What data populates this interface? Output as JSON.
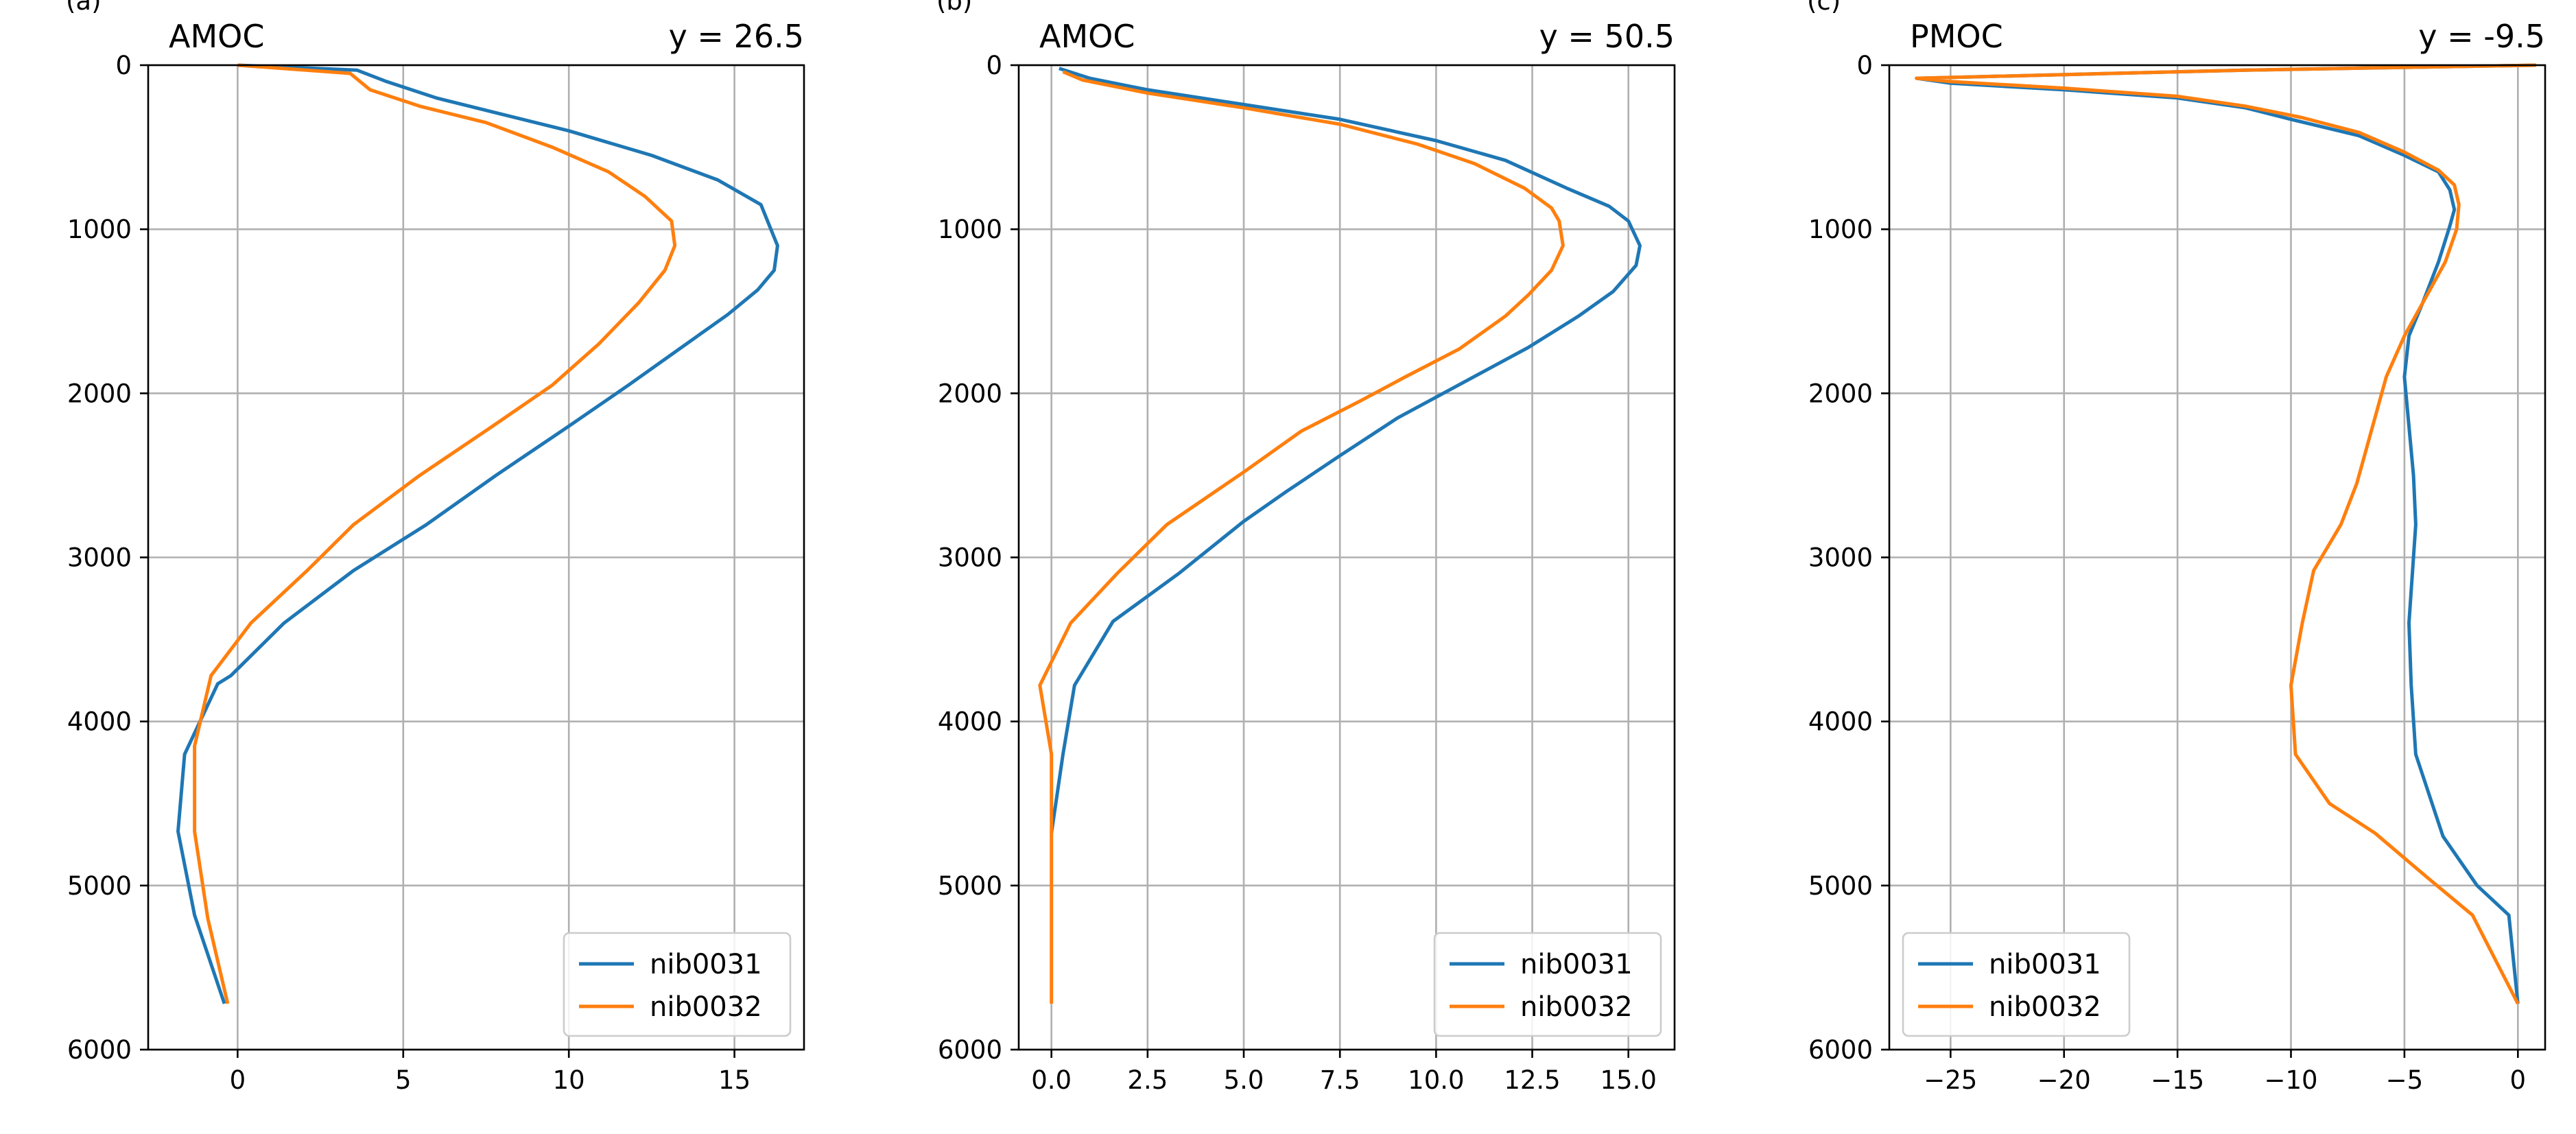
{
  "chart_data": [
    {
      "type": "line",
      "panel_label": "(a)",
      "title_left": "AMOC",
      "title_right": "y = 26.5",
      "xlim": [
        -2.7,
        17.1
      ],
      "ylim": [
        6000,
        0
      ],
      "xticks": [
        0,
        5,
        10,
        15
      ],
      "xtick_labels": [
        "0",
        "5",
        "10",
        "15"
      ],
      "yticks": [
        0,
        1000,
        2000,
        3000,
        4000,
        5000,
        6000
      ],
      "ytick_labels": [
        "0",
        "1000",
        "2000",
        "3000",
        "4000",
        "5000",
        "6000"
      ],
      "grid": true,
      "legend_position": "lower-right",
      "series": [
        {
          "name": "nib0031",
          "color": "#1f77b4",
          "points": [
            [
              0,
              0
            ],
            [
              3.6,
              30
            ],
            [
              4.5,
              100
            ],
            [
              6,
              200
            ],
            [
              8,
              300
            ],
            [
              10,
              400
            ],
            [
              12.5,
              550
            ],
            [
              14.5,
              700
            ],
            [
              15.8,
              850
            ],
            [
              16.1,
              1000
            ],
            [
              16.3,
              1100
            ],
            [
              16.2,
              1250
            ],
            [
              15.7,
              1370
            ],
            [
              14.8,
              1520
            ],
            [
              13.4,
              1720
            ],
            [
              11.8,
              1950
            ],
            [
              10,
              2200
            ],
            [
              7.8,
              2500
            ],
            [
              5.7,
              2800
            ],
            [
              3.5,
              3080
            ],
            [
              1.4,
              3400
            ],
            [
              -0.2,
              3720
            ],
            [
              -0.6,
              3770
            ],
            [
              -1.6,
              4200
            ],
            [
              -1.8,
              4670
            ],
            [
              -1.3,
              5180
            ],
            [
              -0.4,
              5720
            ]
          ]
        },
        {
          "name": "nib0032",
          "color": "#ff7f0e",
          "points": [
            [
              0,
              0
            ],
            [
              3.4,
              50
            ],
            [
              4,
              150
            ],
            [
              5.5,
              250
            ],
            [
              7.5,
              350
            ],
            [
              9.5,
              500
            ],
            [
              11.2,
              650
            ],
            [
              12.3,
              800
            ],
            [
              13.1,
              950
            ],
            [
              13.2,
              1100
            ],
            [
              12.9,
              1250
            ],
            [
              12.1,
              1450
            ],
            [
              10.9,
              1700
            ],
            [
              9.5,
              1950
            ],
            [
              7.7,
              2200
            ],
            [
              5.5,
              2500
            ],
            [
              3.5,
              2800
            ],
            [
              2.1,
              3080
            ],
            [
              0.4,
              3400
            ],
            [
              -0.8,
              3720
            ],
            [
              -1.3,
              4150
            ],
            [
              -1.3,
              4670
            ],
            [
              -0.9,
              5200
            ],
            [
              -0.3,
              5720
            ]
          ]
        }
      ]
    },
    {
      "type": "line",
      "panel_label": "(b)",
      "title_left": "AMOC",
      "title_right": "y = 50.5",
      "xlim": [
        -0.85,
        16.2
      ],
      "ylim": [
        6000,
        0
      ],
      "xticks": [
        0,
        2.5,
        5,
        7.5,
        10,
        12.5,
        15
      ],
      "xtick_labels": [
        "0.0",
        "2.5",
        "5.0",
        "7.5",
        "10.0",
        "12.5",
        "15.0"
      ],
      "yticks": [
        0,
        1000,
        2000,
        3000,
        4000,
        5000,
        6000
      ],
      "ytick_labels": [
        "0",
        "1000",
        "2000",
        "3000",
        "4000",
        "5000",
        "6000"
      ],
      "grid": true,
      "legend_position": "lower-right",
      "series": [
        {
          "name": "nib0031",
          "color": "#1f77b4",
          "points": [
            [
              0.2,
              20
            ],
            [
              1,
              80
            ],
            [
              2.5,
              150
            ],
            [
              5,
              240
            ],
            [
              7.5,
              330
            ],
            [
              10,
              460
            ],
            [
              11.8,
              580
            ],
            [
              13.4,
              750
            ],
            [
              14.5,
              860
            ],
            [
              15,
              950
            ],
            [
              15.3,
              1100
            ],
            [
              15.2,
              1220
            ],
            [
              14.6,
              1380
            ],
            [
              13.7,
              1530
            ],
            [
              12.4,
              1720
            ],
            [
              10.5,
              1960
            ],
            [
              9,
              2150
            ],
            [
              7.5,
              2380
            ],
            [
              6.1,
              2600
            ],
            [
              5,
              2780
            ],
            [
              3.3,
              3100
            ],
            [
              1.6,
              3390
            ],
            [
              0.6,
              3780
            ],
            [
              0.3,
              4200
            ],
            [
              0,
              4680
            ]
          ]
        },
        {
          "name": "nib0032",
          "color": "#ff7f0e",
          "points": [
            [
              0.3,
              40
            ],
            [
              0.8,
              90
            ],
            [
              2.5,
              170
            ],
            [
              5,
              260
            ],
            [
              7.5,
              360
            ],
            [
              9.5,
              480
            ],
            [
              11,
              600
            ],
            [
              12.3,
              750
            ],
            [
              13,
              870
            ],
            [
              13.2,
              950
            ],
            [
              13.3,
              1100
            ],
            [
              13,
              1250
            ],
            [
              12.4,
              1400
            ],
            [
              11.8,
              1530
            ],
            [
              10.6,
              1730
            ],
            [
              9.2,
              1900
            ],
            [
              8,
              2050
            ],
            [
              6.5,
              2230
            ],
            [
              5,
              2480
            ],
            [
              3,
              2800
            ],
            [
              1.7,
              3100
            ],
            [
              0.5,
              3400
            ],
            [
              -0.3,
              3780
            ],
            [
              0,
              4200
            ],
            [
              0,
              4700
            ],
            [
              0,
              5720
            ]
          ]
        }
      ]
    },
    {
      "type": "line",
      "panel_label": "(c)",
      "title_left": "PMOC",
      "title_right": "y = -9.5",
      "xlim": [
        -27.7,
        1.2
      ],
      "ylim": [
        6000,
        0
      ],
      "xticks": [
        -25,
        -20,
        -15,
        -10,
        -5,
        0
      ],
      "xtick_labels": [
        "−25",
        "−20",
        "−15",
        "−10",
        "−5",
        "0"
      ],
      "yticks": [
        0,
        1000,
        2000,
        3000,
        4000,
        5000,
        6000
      ],
      "ytick_labels": [
        "0",
        "1000",
        "2000",
        "3000",
        "4000",
        "5000",
        "6000"
      ],
      "grid": true,
      "legend_position": "lower-left",
      "series": [
        {
          "name": "nib0031",
          "color": "#1f77b4",
          "points": [
            [
              0.8,
              0
            ],
            [
              -12,
              30
            ],
            [
              -26.5,
              80
            ],
            [
              -25,
              110
            ],
            [
              -20,
              150
            ],
            [
              -15,
              200
            ],
            [
              -12,
              260
            ],
            [
              -10,
              330
            ],
            [
              -7,
              430
            ],
            [
              -5,
              550
            ],
            [
              -3.5,
              650
            ],
            [
              -3,
              760
            ],
            [
              -2.8,
              880
            ],
            [
              -3,
              980
            ],
            [
              -3.5,
              1200
            ],
            [
              -4.2,
              1450
            ],
            [
              -4.8,
              1650
            ],
            [
              -5,
              1900
            ],
            [
              -4.8,
              2200
            ],
            [
              -4.6,
              2500
            ],
            [
              -4.5,
              2800
            ],
            [
              -4.8,
              3400
            ],
            [
              -4.7,
              3780
            ],
            [
              -4.5,
              4200
            ],
            [
              -3.3,
              4700
            ],
            [
              -1.8,
              5000
            ],
            [
              -0.4,
              5180
            ],
            [
              0,
              5720
            ]
          ]
        },
        {
          "name": "nib0032",
          "color": "#ff7f0e",
          "points": [
            [
              0.8,
              0
            ],
            [
              -12,
              30
            ],
            [
              -26.5,
              80
            ],
            [
              -25,
              100
            ],
            [
              -20,
              140
            ],
            [
              -15,
              190
            ],
            [
              -12,
              250
            ],
            [
              -9.5,
              320
            ],
            [
              -7,
              410
            ],
            [
              -5,
              530
            ],
            [
              -3.5,
              640
            ],
            [
              -2.8,
              730
            ],
            [
              -2.6,
              850
            ],
            [
              -2.7,
              1000
            ],
            [
              -3.2,
              1200
            ],
            [
              -4.2,
              1450
            ],
            [
              -5,
              1650
            ],
            [
              -5.8,
              1900
            ],
            [
              -6.5,
              2250
            ],
            [
              -7.1,
              2550
            ],
            [
              -7.8,
              2800
            ],
            [
              -9,
              3080
            ],
            [
              -9.5,
              3400
            ],
            [
              -10,
              3780
            ],
            [
              -9.8,
              4200
            ],
            [
              -8.3,
              4500
            ],
            [
              -6.3,
              4680
            ],
            [
              -4,
              4950
            ],
            [
              -2,
              5180
            ],
            [
              -1,
              5450
            ],
            [
              0,
              5720
            ]
          ]
        }
      ]
    }
  ]
}
